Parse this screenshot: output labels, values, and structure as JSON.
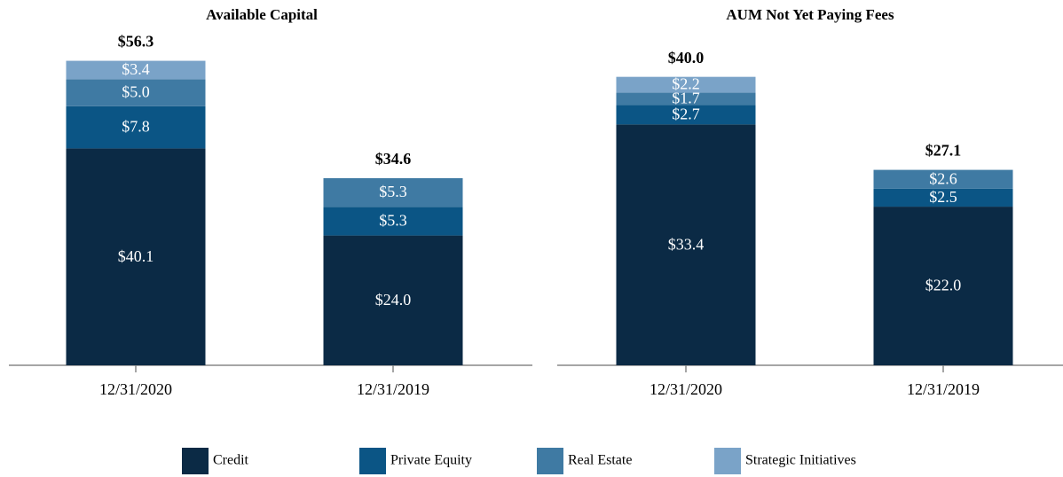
{
  "chart_data": [
    {
      "type": "bar",
      "stacked": true,
      "title": "Available Capital",
      "categories": [
        "12/31/2020",
        "12/31/2019"
      ],
      "series": [
        {
          "name": "Credit",
          "color": "#0b2a45",
          "values": [
            40.1,
            24.0
          ],
          "value_labels": [
            "$40.1",
            "$24.0"
          ]
        },
        {
          "name": "Private Equity",
          "color": "#0b5585",
          "values": [
            7.8,
            5.3
          ],
          "value_labels": [
            "$7.8",
            "$5.3"
          ]
        },
        {
          "name": "Real Estate",
          "color": "#3f7aa3",
          "values": [
            5.0,
            5.3
          ],
          "value_labels": [
            "$5.0",
            "$5.3"
          ]
        },
        {
          "name": "Strategic Initiatives",
          "color": "#7aa3c8",
          "values": [
            3.4,
            null
          ],
          "value_labels": [
            "$3.4",
            null
          ]
        }
      ],
      "totals": [
        56.3,
        34.6
      ],
      "total_labels": [
        "$56.3",
        "$34.6"
      ],
      "ylim": [
        0,
        60
      ]
    },
    {
      "type": "bar",
      "stacked": true,
      "title": "AUM Not Yet Paying Fees",
      "categories": [
        "12/31/2020",
        "12/31/2019"
      ],
      "series": [
        {
          "name": "Credit",
          "color": "#0b2a45",
          "values": [
            33.4,
            22.0
          ],
          "value_labels": [
            "$33.4",
            "$22.0"
          ]
        },
        {
          "name": "Private Equity",
          "color": "#0b5585",
          "values": [
            2.7,
            2.5
          ],
          "value_labels": [
            "$2.7",
            "$2.5"
          ]
        },
        {
          "name": "Real Estate",
          "color": "#3f7aa3",
          "values": [
            1.7,
            2.6
          ],
          "value_labels": [
            "$1.7",
            "$2.6"
          ]
        },
        {
          "name": "Strategic Initiatives",
          "color": "#7aa3c8",
          "values": [
            2.2,
            null
          ],
          "value_labels": [
            "$2.2",
            null
          ]
        }
      ],
      "totals": [
        40.0,
        27.1
      ],
      "total_labels": [
        "$40.0",
        "$27.1"
      ],
      "ylim": [
        0,
        45
      ]
    }
  ]
}
